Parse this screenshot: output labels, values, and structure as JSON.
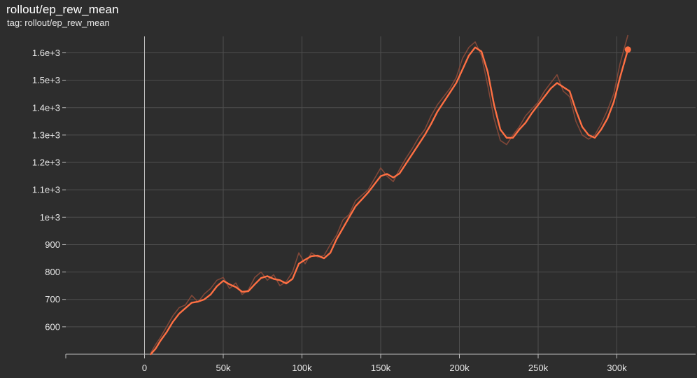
{
  "header": {
    "title": "rollout/ep_rew_mean",
    "subtitle": "tag: rollout/ep_rew_mean"
  },
  "colors": {
    "background": "#2d2d2d",
    "series_smoothed": "#ff7043",
    "series_raw": "#8a4a3a",
    "grid": "#4e4e4e",
    "axis": "#bdbdbd"
  },
  "chart_data": {
    "type": "line",
    "title": "rollout/ep_rew_mean",
    "xlabel": "",
    "ylabel": "",
    "xlim": [
      -50000,
      350000
    ],
    "ylim": [
      500,
      1660
    ],
    "grid": true,
    "x_ticks": [
      {
        "value": 0,
        "label": "0"
      },
      {
        "value": 50000,
        "label": "50k"
      },
      {
        "value": 100000,
        "label": "100k"
      },
      {
        "value": 150000,
        "label": "150k"
      },
      {
        "value": 200000,
        "label": "200k"
      },
      {
        "value": 250000,
        "label": "250k"
      },
      {
        "value": 300000,
        "label": "300k"
      }
    ],
    "y_ticks": [
      {
        "value": 600,
        "label": "600"
      },
      {
        "value": 700,
        "label": "700"
      },
      {
        "value": 800,
        "label": "800"
      },
      {
        "value": 900,
        "label": "900"
      },
      {
        "value": 1000,
        "label": "1e+3"
      },
      {
        "value": 1100,
        "label": "1.1e+3"
      },
      {
        "value": 1200,
        "label": "1.2e+3"
      },
      {
        "value": 1300,
        "label": "1.3e+3"
      },
      {
        "value": 1400,
        "label": "1.4e+3"
      },
      {
        "value": 1500,
        "label": "1.5e+3"
      },
      {
        "value": 1600,
        "label": "1.6e+3"
      }
    ],
    "series": [
      {
        "role": "smoothed",
        "x": [
          4000,
          7000,
          10000,
          14000,
          18000,
          22000,
          26000,
          30000,
          34000,
          38000,
          42000,
          46000,
          50000,
          54000,
          58000,
          62000,
          66000,
          70000,
          74000,
          78000,
          82000,
          86000,
          90000,
          94000,
          98000,
          102000,
          106000,
          110000,
          114000,
          118000,
          122000,
          126000,
          130000,
          134000,
          138000,
          142000,
          146000,
          150000,
          154000,
          158000,
          162000,
          166000,
          170000,
          174000,
          178000,
          182000,
          186000,
          190000,
          194000,
          198000,
          202000,
          206000,
          210000,
          214000,
          218000,
          222000,
          226000,
          230000,
          234000,
          238000,
          242000,
          246000,
          250000,
          254000,
          258000,
          262000,
          266000,
          270000,
          274000,
          278000,
          282000,
          286000,
          290000,
          294000,
          298000,
          302000,
          307000
        ],
        "y": [
          500,
          520,
          548,
          580,
          618,
          648,
          668,
          688,
          692,
          700,
          718,
          748,
          768,
          755,
          745,
          728,
          730,
          755,
          778,
          785,
          775,
          770,
          758,
          775,
          830,
          845,
          858,
          860,
          850,
          870,
          920,
          960,
          1000,
          1040,
          1065,
          1090,
          1120,
          1150,
          1158,
          1145,
          1160,
          1195,
          1230,
          1265,
          1300,
          1340,
          1385,
          1420,
          1455,
          1490,
          1540,
          1590,
          1620,
          1605,
          1530,
          1410,
          1320,
          1290,
          1290,
          1320,
          1345,
          1380,
          1410,
          1440,
          1470,
          1490,
          1475,
          1460,
          1390,
          1330,
          1300,
          1290,
          1320,
          1360,
          1420,
          1510,
          1612
        ]
      },
      {
        "role": "raw",
        "x": [
          4000,
          7000,
          10000,
          14000,
          18000,
          22000,
          26000,
          30000,
          34000,
          38000,
          42000,
          46000,
          50000,
          54000,
          58000,
          62000,
          66000,
          70000,
          74000,
          78000,
          82000,
          86000,
          90000,
          94000,
          98000,
          102000,
          106000,
          110000,
          114000,
          118000,
          122000,
          126000,
          130000,
          134000,
          138000,
          142000,
          146000,
          150000,
          154000,
          158000,
          162000,
          166000,
          170000,
          174000,
          178000,
          182000,
          186000,
          190000,
          194000,
          198000,
          202000,
          206000,
          210000,
          214000,
          218000,
          222000,
          226000,
          230000,
          234000,
          238000,
          242000,
          246000,
          250000,
          254000,
          258000,
          262000,
          266000,
          270000,
          274000,
          278000,
          282000,
          286000,
          290000,
          294000,
          298000,
          302000,
          307000
        ],
        "y": [
          505,
          535,
          560,
          600,
          640,
          670,
          680,
          715,
          690,
          720,
          740,
          770,
          780,
          740,
          760,
          718,
          735,
          780,
          800,
          770,
          790,
          750,
          765,
          800,
          870,
          830,
          870,
          855,
          860,
          900,
          935,
          990,
          1010,
          1060,
          1080,
          1100,
          1140,
          1180,
          1150,
          1130,
          1175,
          1215,
          1250,
          1290,
          1320,
          1370,
          1410,
          1440,
          1470,
          1510,
          1580,
          1620,
          1640,
          1590,
          1480,
          1360,
          1280,
          1265,
          1300,
          1330,
          1370,
          1395,
          1420,
          1460,
          1490,
          1520,
          1460,
          1440,
          1350,
          1300,
          1285,
          1300,
          1340,
          1390,
          1450,
          1560,
          1665
        ]
      }
    ]
  }
}
